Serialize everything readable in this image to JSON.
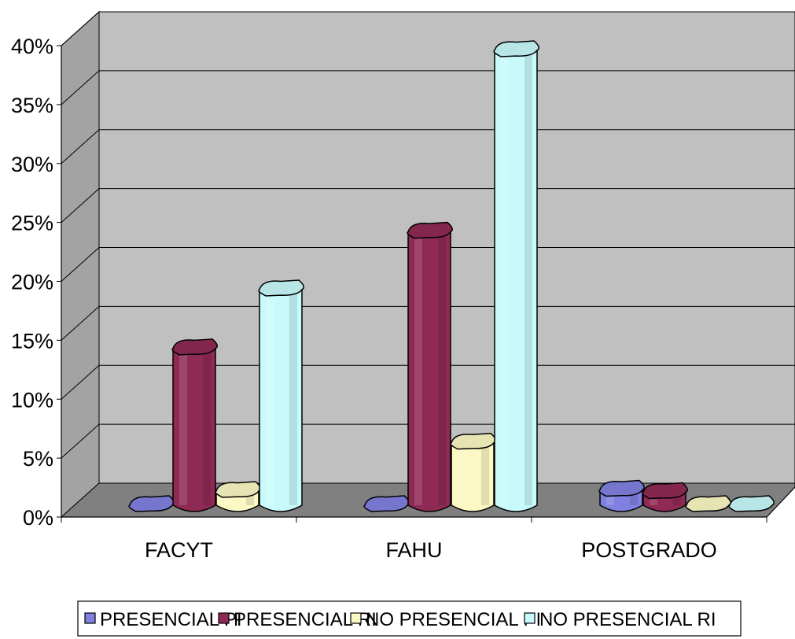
{
  "chart_data": {
    "type": "bar",
    "categories": [
      "FACYT",
      "FAHU",
      "POSTGRADO"
    ],
    "series": [
      {
        "name": "PRESENCIAL PI",
        "values": [
          0.0,
          0.0,
          1.3
        ],
        "color": "#8080e0"
      },
      {
        "name": "PRESENCIAL RI",
        "values": [
          13.3,
          23.2,
          1.1
        ],
        "color": "#8e2a54"
      },
      {
        "name": "NO PRESENCIAL PI",
        "values": [
          1.2,
          5.3,
          0.0
        ],
        "color": "#fbf8c4"
      },
      {
        "name": "NO PRESENCIAL RI",
        "values": [
          18.3,
          38.6,
          0.0
        ],
        "color": "#c8fafb"
      }
    ],
    "yticks": [
      "0%",
      "5%",
      "10%",
      "15%",
      "20%",
      "25%",
      "30%",
      "35%",
      "40%"
    ],
    "ylim": [
      0,
      40
    ],
    "grid": true,
    "legend_position": "bottom",
    "wall_color": "#c0c0c0",
    "floor_color": "#808080"
  }
}
